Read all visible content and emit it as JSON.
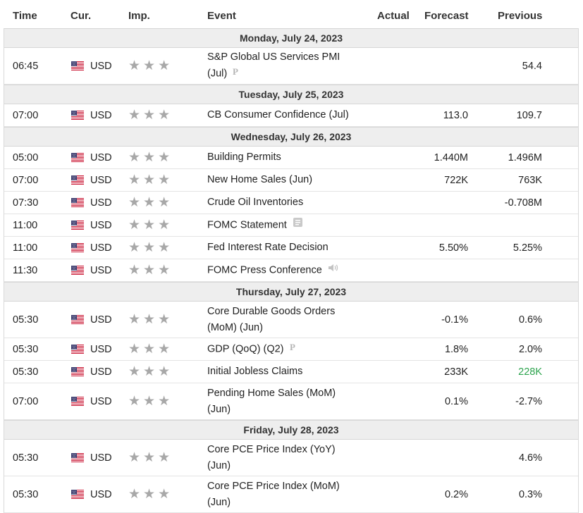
{
  "headers": {
    "time": "Time",
    "cur": "Cur.",
    "imp": "Imp.",
    "event": "Event",
    "actual": "Actual",
    "forecast": "Forecast",
    "previous": "Previous"
  },
  "colors": {
    "positive": "#2ea44f",
    "star": "#a8a8a8",
    "day_header_bg": "#eeeeee"
  },
  "days": [
    {
      "label": "Monday, July 24, 2023",
      "events": [
        {
          "time": "06:45",
          "currency": "USD",
          "event_line1": "S&P Global US Services PMI",
          "event_line2": "(Jul)",
          "icon": "preliminary-icon",
          "actual": "",
          "forecast": "",
          "previous": "54.4"
        }
      ]
    },
    {
      "label": "Tuesday, July 25, 2023",
      "events": [
        {
          "time": "07:00",
          "currency": "USD",
          "event_line1": "CB Consumer Confidence (Jul)",
          "actual": "",
          "forecast": "113.0",
          "previous": "109.7"
        }
      ]
    },
    {
      "label": "Wednesday, July 26, 2023",
      "events": [
        {
          "time": "05:00",
          "currency": "USD",
          "event_line1": "Building Permits",
          "actual": "",
          "forecast": "1.440M",
          "previous": "1.496M"
        },
        {
          "time": "07:00",
          "currency": "USD",
          "event_line1": "New Home Sales (Jun)",
          "actual": "",
          "forecast": "722K",
          "previous": "763K"
        },
        {
          "time": "07:30",
          "currency": "USD",
          "event_line1": "Crude Oil Inventories",
          "actual": "",
          "forecast": "",
          "previous": "-0.708M"
        },
        {
          "time": "11:00",
          "currency": "USD",
          "event_line1": "FOMC Statement",
          "icon": "document-icon",
          "actual": "",
          "forecast": "",
          "previous": ""
        },
        {
          "time": "11:00",
          "currency": "USD",
          "event_line1": "Fed Interest Rate Decision",
          "actual": "",
          "forecast": "5.50%",
          "previous": "5.25%"
        },
        {
          "time": "11:30",
          "currency": "USD",
          "event_line1": "FOMC Press Conference",
          "icon": "speaker-icon",
          "actual": "",
          "forecast": "",
          "previous": ""
        }
      ]
    },
    {
      "label": "Thursday, July 27, 2023",
      "events": [
        {
          "time": "05:30",
          "currency": "USD",
          "event_line1": "Core Durable Goods Orders",
          "event_line2": "(MoM) (Jun)",
          "actual": "",
          "forecast": "-0.1%",
          "previous": "0.6%"
        },
        {
          "time": "05:30",
          "currency": "USD",
          "event_line1": "GDP (QoQ) (Q2)",
          "icon": "preliminary-icon",
          "actual": "",
          "forecast": "1.8%",
          "previous": "2.0%"
        },
        {
          "time": "05:30",
          "currency": "USD",
          "event_line1": "Initial Jobless Claims",
          "actual": "",
          "forecast": "233K",
          "previous": "228K",
          "previous_color": "#2ea44f"
        },
        {
          "time": "07:00",
          "currency": "USD",
          "event_line1": "Pending Home Sales (MoM)",
          "event_line2": "(Jun)",
          "actual": "",
          "forecast": "0.1%",
          "previous": "-2.7%"
        }
      ]
    },
    {
      "label": "Friday, July 28, 2023",
      "events": [
        {
          "time": "05:30",
          "currency": "USD",
          "event_line1": "Core PCE Price Index (YoY)",
          "event_line2": "(Jun)",
          "actual": "",
          "forecast": "",
          "previous": "4.6%"
        },
        {
          "time": "05:30",
          "currency": "USD",
          "event_line1": "Core PCE Price Index (MoM)",
          "event_line2": "(Jun)",
          "actual": "",
          "forecast": "0.2%",
          "previous": "0.3%"
        }
      ]
    }
  ]
}
